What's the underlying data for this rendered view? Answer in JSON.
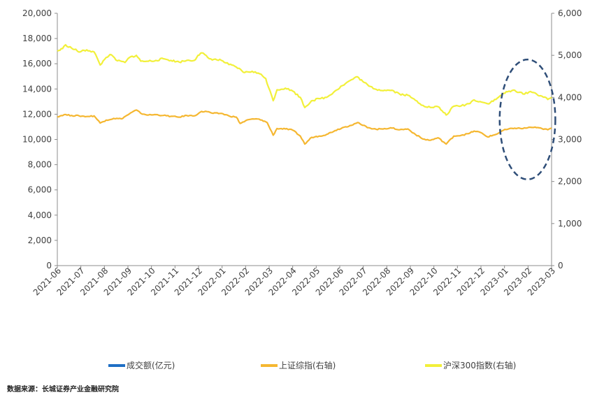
{
  "chart_data": {
    "type": "line",
    "title": "",
    "x_categories": [
      "2021-06",
      "2021-07",
      "2021-08",
      "2021-09",
      "2021-10",
      "2021-11",
      "2021-12",
      "2022-01",
      "2022-02",
      "2022-03",
      "2022-04",
      "2022-05",
      "2022-06",
      "2022-07",
      "2022-08",
      "2022-09",
      "2022-10",
      "2022-11",
      "2022-12",
      "2023-01",
      "2023-02",
      "2023-03"
    ],
    "left_axis": {
      "ylim": [
        0,
        20000
      ],
      "ticks": [
        "0",
        "2,000",
        "4,000",
        "6,000",
        "8,000",
        "10,000",
        "12,000",
        "14,000",
        "16,000",
        "18,000",
        "20,000"
      ]
    },
    "right_axis": {
      "ylim": [
        0,
        6000
      ],
      "ticks": [
        "0",
        "1,000",
        "2,000",
        "3,000",
        "4,000",
        "5,000",
        "6,000"
      ]
    },
    "series": [
      {
        "name": "成交额(亿元)",
        "axis": "left",
        "type": "bar",
        "color": "#1f6fc5",
        "values": []
      },
      {
        "name": "上证综指(右轴)",
        "axis": "right",
        "type": "line",
        "color": "#f5b731",
        "points": [
          [
            "2021-06-01",
            3540
          ],
          [
            "2021-06-10",
            3590
          ],
          [
            "2021-06-20",
            3570
          ],
          [
            "2021-06-30",
            3560
          ],
          [
            "2021-07-10",
            3545
          ],
          [
            "2021-07-20",
            3560
          ],
          [
            "2021-07-28",
            3390
          ],
          [
            "2021-08-05",
            3460
          ],
          [
            "2021-08-15",
            3500
          ],
          [
            "2021-08-25",
            3490
          ],
          [
            "2021-09-05",
            3610
          ],
          [
            "2021-09-14",
            3700
          ],
          [
            "2021-09-20",
            3620
          ],
          [
            "2021-09-30",
            3580
          ],
          [
            "2021-10-10",
            3590
          ],
          [
            "2021-10-20",
            3570
          ],
          [
            "2021-10-30",
            3550
          ],
          [
            "2021-11-10",
            3530
          ],
          [
            "2021-11-20",
            3570
          ],
          [
            "2021-11-30",
            3560
          ],
          [
            "2021-12-08",
            3650
          ],
          [
            "2021-12-15",
            3670
          ],
          [
            "2021-12-25",
            3620
          ],
          [
            "2022-01-05",
            3620
          ],
          [
            "2022-01-15",
            3560
          ],
          [
            "2022-01-25",
            3530
          ],
          [
            "2022-01-30",
            3380
          ],
          [
            "2022-02-10",
            3470
          ],
          [
            "2022-02-20",
            3490
          ],
          [
            "2022-02-28",
            3460
          ],
          [
            "2022-03-07",
            3400
          ],
          [
            "2022-03-15",
            3100
          ],
          [
            "2022-03-20",
            3260
          ],
          [
            "2022-03-31",
            3250
          ],
          [
            "2022-04-10",
            3220
          ],
          [
            "2022-04-20",
            3080
          ],
          [
            "2022-04-26",
            2890
          ],
          [
            "2022-05-05",
            3050
          ],
          [
            "2022-05-15",
            3080
          ],
          [
            "2022-05-25",
            3120
          ],
          [
            "2022-06-05",
            3210
          ],
          [
            "2022-06-15",
            3280
          ],
          [
            "2022-06-25",
            3330
          ],
          [
            "2022-07-05",
            3400
          ],
          [
            "2022-07-10",
            3350
          ],
          [
            "2022-07-20",
            3280
          ],
          [
            "2022-07-30",
            3240
          ],
          [
            "2022-08-10",
            3260
          ],
          [
            "2022-08-20",
            3270
          ],
          [
            "2022-08-30",
            3230
          ],
          [
            "2022-09-10",
            3250
          ],
          [
            "2022-09-20",
            3120
          ],
          [
            "2022-09-30",
            3010
          ],
          [
            "2022-10-10",
            2980
          ],
          [
            "2022-10-20",
            3040
          ],
          [
            "2022-10-31",
            2890
          ],
          [
            "2022-11-10",
            3080
          ],
          [
            "2022-11-20",
            3100
          ],
          [
            "2022-11-30",
            3140
          ],
          [
            "2022-12-07",
            3200
          ],
          [
            "2022-12-15",
            3170
          ],
          [
            "2022-12-25",
            3060
          ],
          [
            "2023-01-05",
            3120
          ],
          [
            "2023-01-15",
            3220
          ],
          [
            "2023-01-30",
            3270
          ],
          [
            "2023-02-10",
            3260
          ],
          [
            "2023-02-20",
            3290
          ],
          [
            "2023-02-28",
            3280
          ],
          [
            "2023-03-07",
            3260
          ],
          [
            "2023-03-15",
            3230
          ],
          [
            "2023-03-20",
            3270
          ]
        ]
      },
      {
        "name": "沪深300指数(右轴)",
        "axis": "right",
        "type": "line",
        "color": "#f2f03a",
        "points": [
          [
            "2021-06-01",
            5100
          ],
          [
            "2021-06-08",
            5160
          ],
          [
            "2021-06-12",
            5250
          ],
          [
            "2021-06-20",
            5170
          ],
          [
            "2021-07-01",
            5080
          ],
          [
            "2021-07-10",
            5130
          ],
          [
            "2021-07-20",
            5080
          ],
          [
            "2021-07-28",
            4770
          ],
          [
            "2021-08-05",
            4950
          ],
          [
            "2021-08-10",
            5020
          ],
          [
            "2021-08-20",
            4870
          ],
          [
            "2021-08-30",
            4830
          ],
          [
            "2021-09-05",
            4950
          ],
          [
            "2021-09-14",
            5000
          ],
          [
            "2021-09-20",
            4860
          ],
          [
            "2021-09-30",
            4860
          ],
          [
            "2021-10-10",
            4880
          ],
          [
            "2021-10-20",
            4920
          ],
          [
            "2021-10-30",
            4880
          ],
          [
            "2021-11-10",
            4840
          ],
          [
            "2021-11-20",
            4880
          ],
          [
            "2021-11-30",
            4880
          ],
          [
            "2021-12-05",
            5000
          ],
          [
            "2021-12-10",
            5060
          ],
          [
            "2021-12-20",
            4920
          ],
          [
            "2022-01-05",
            4880
          ],
          [
            "2022-01-15",
            4780
          ],
          [
            "2022-01-25",
            4720
          ],
          [
            "2022-02-05",
            4590
          ],
          [
            "2022-02-15",
            4620
          ],
          [
            "2022-02-25",
            4560
          ],
          [
            "2022-03-05",
            4450
          ],
          [
            "2022-03-15",
            3920
          ],
          [
            "2022-03-20",
            4180
          ],
          [
            "2022-03-31",
            4220
          ],
          [
            "2022-04-10",
            4150
          ],
          [
            "2022-04-20",
            4000
          ],
          [
            "2022-04-26",
            3760
          ],
          [
            "2022-05-05",
            3920
          ],
          [
            "2022-05-15",
            3970
          ],
          [
            "2022-05-25",
            4000
          ],
          [
            "2022-06-05",
            4150
          ],
          [
            "2022-06-15",
            4280
          ],
          [
            "2022-06-25",
            4400
          ],
          [
            "2022-07-05",
            4490
          ],
          [
            "2022-07-12",
            4380
          ],
          [
            "2022-07-20",
            4270
          ],
          [
            "2022-07-30",
            4190
          ],
          [
            "2022-08-10",
            4170
          ],
          [
            "2022-08-20",
            4170
          ],
          [
            "2022-08-30",
            4080
          ],
          [
            "2022-09-10",
            4050
          ],
          [
            "2022-09-20",
            3930
          ],
          [
            "2022-09-30",
            3810
          ],
          [
            "2022-10-10",
            3760
          ],
          [
            "2022-10-20",
            3780
          ],
          [
            "2022-10-31",
            3580
          ],
          [
            "2022-11-10",
            3790
          ],
          [
            "2022-11-20",
            3800
          ],
          [
            "2022-11-30",
            3850
          ],
          [
            "2022-12-07",
            3940
          ],
          [
            "2022-12-15",
            3900
          ],
          [
            "2022-12-25",
            3850
          ],
          [
            "2023-01-05",
            3950
          ],
          [
            "2023-01-15",
            4100
          ],
          [
            "2023-01-30",
            4170
          ],
          [
            "2023-02-10",
            4080
          ],
          [
            "2023-02-20",
            4140
          ],
          [
            "2023-02-28",
            4080
          ],
          [
            "2023-03-07",
            4030
          ],
          [
            "2023-03-15",
            3950
          ],
          [
            "2023-03-20",
            4000
          ]
        ]
      }
    ],
    "annotation": {
      "shape": "dashed-ellipse",
      "color": "#2f4e78",
      "x_range": [
        "2023-01-10",
        "2023-03-25"
      ],
      "right_range": [
        2050,
        4900
      ]
    },
    "legend_position": "bottom",
    "grid": false
  },
  "legend": [
    {
      "label": "成交额(亿元)",
      "color": "#1f6fc5"
    },
    {
      "label": "上证综指(右轴)",
      "color": "#f5b731"
    },
    {
      "label": "沪深300指数(右轴)",
      "color": "#f2f03a"
    }
  ],
  "source": "数据来源：长城证券产业金融研究院"
}
